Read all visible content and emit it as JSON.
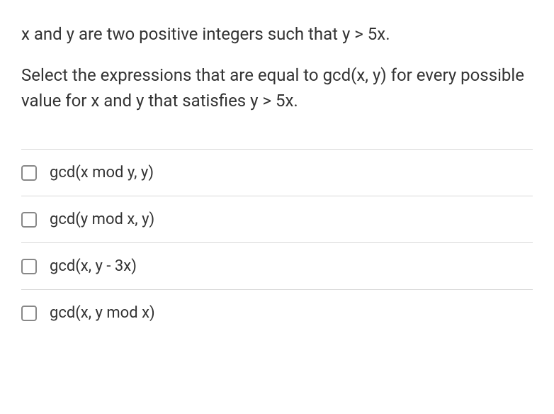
{
  "question": {
    "line1": "x and y are two positive integers such that y > 5x.",
    "line2": "Select the expressions that are equal to gcd(x, y) for every possible value for x and y that satisfies y > 5x."
  },
  "options": [
    {
      "label": "gcd(x mod y, y)",
      "checked": false
    },
    {
      "label": "gcd(y mod x, y)",
      "checked": false
    },
    {
      "label": "gcd(x, y - 3x)",
      "checked": false
    },
    {
      "label": "gcd(x, y mod x)",
      "checked": false
    }
  ],
  "colors": {
    "text": "#333333",
    "border": "#d8d8d8",
    "checkbox_border": "#888888",
    "background": "#ffffff"
  },
  "typography": {
    "question_fontsize": 24,
    "option_fontsize": 22,
    "font_family": "Segoe UI, sans-serif"
  }
}
